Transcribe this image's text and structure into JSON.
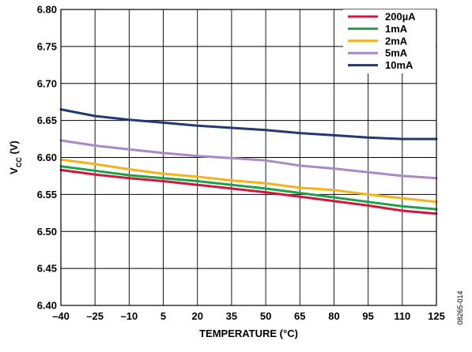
{
  "chart_data": {
    "type": "line",
    "xlabel": "TEMPERATURE (°C)",
    "ylabel": "V",
    "ylabel_subscript": "CC",
    "ylabel_unit": " (V)",
    "xlim": [
      -40,
      125
    ],
    "ylim": [
      6.4,
      6.8
    ],
    "x_ticks": [
      -40,
      -25,
      -10,
      5,
      20,
      35,
      50,
      65,
      80,
      95,
      110,
      125
    ],
    "x_tick_labels": [
      "–40",
      "–25",
      "–10",
      "5",
      "20",
      "35",
      "50",
      "65",
      "80",
      "95",
      "110",
      "125"
    ],
    "y_ticks": [
      6.4,
      6.45,
      6.5,
      6.55,
      6.6,
      6.65,
      6.7,
      6.75,
      6.8
    ],
    "y_tick_labels": [
      "6.40",
      "6.45",
      "6.50",
      "6.55",
      "6.60",
      "6.65",
      "6.70",
      "6.75",
      "6.80"
    ],
    "grid": true,
    "legend_position": "top-right",
    "figure_code": "08265-014",
    "series": [
      {
        "name": "200µA",
        "color": "#d7143c",
        "x": [
          -40,
          -25,
          -10,
          5,
          20,
          35,
          50,
          65,
          80,
          95,
          110,
          125
        ],
        "y": [
          6.583,
          6.577,
          6.572,
          6.568,
          6.563,
          6.558,
          6.553,
          6.547,
          6.541,
          6.535,
          6.528,
          6.524
        ]
      },
      {
        "name": "1mA",
        "color": "#1ca34a",
        "x": [
          -40,
          -25,
          -10,
          5,
          20,
          35,
          50,
          65,
          80,
          95,
          110,
          125
        ],
        "y": [
          6.588,
          6.582,
          6.576,
          6.572,
          6.568,
          6.563,
          6.558,
          6.552,
          6.546,
          6.54,
          6.534,
          6.53
        ]
      },
      {
        "name": "2mA",
        "color": "#f6b21a",
        "x": [
          -40,
          -25,
          -10,
          5,
          20,
          35,
          50,
          65,
          80,
          95,
          110,
          125
        ],
        "y": [
          6.597,
          6.591,
          6.584,
          6.578,
          6.574,
          6.569,
          6.565,
          6.559,
          6.556,
          6.55,
          6.545,
          6.54
        ]
      },
      {
        "name": "5mA",
        "color": "#a98ac6",
        "x": [
          -40,
          -25,
          -10,
          5,
          20,
          35,
          50,
          65,
          80,
          95,
          110,
          125
        ],
        "y": [
          6.623,
          6.616,
          6.611,
          6.606,
          6.602,
          6.599,
          6.596,
          6.589,
          6.585,
          6.58,
          6.575,
          6.572
        ]
      },
      {
        "name": "10mA",
        "color": "#1f3a76",
        "x": [
          -40,
          -25,
          -10,
          5,
          20,
          35,
          50,
          65,
          80,
          95,
          110,
          125
        ],
        "y": [
          6.665,
          6.656,
          6.651,
          6.647,
          6.643,
          6.64,
          6.637,
          6.633,
          6.63,
          6.627,
          6.625,
          6.625
        ]
      }
    ]
  }
}
